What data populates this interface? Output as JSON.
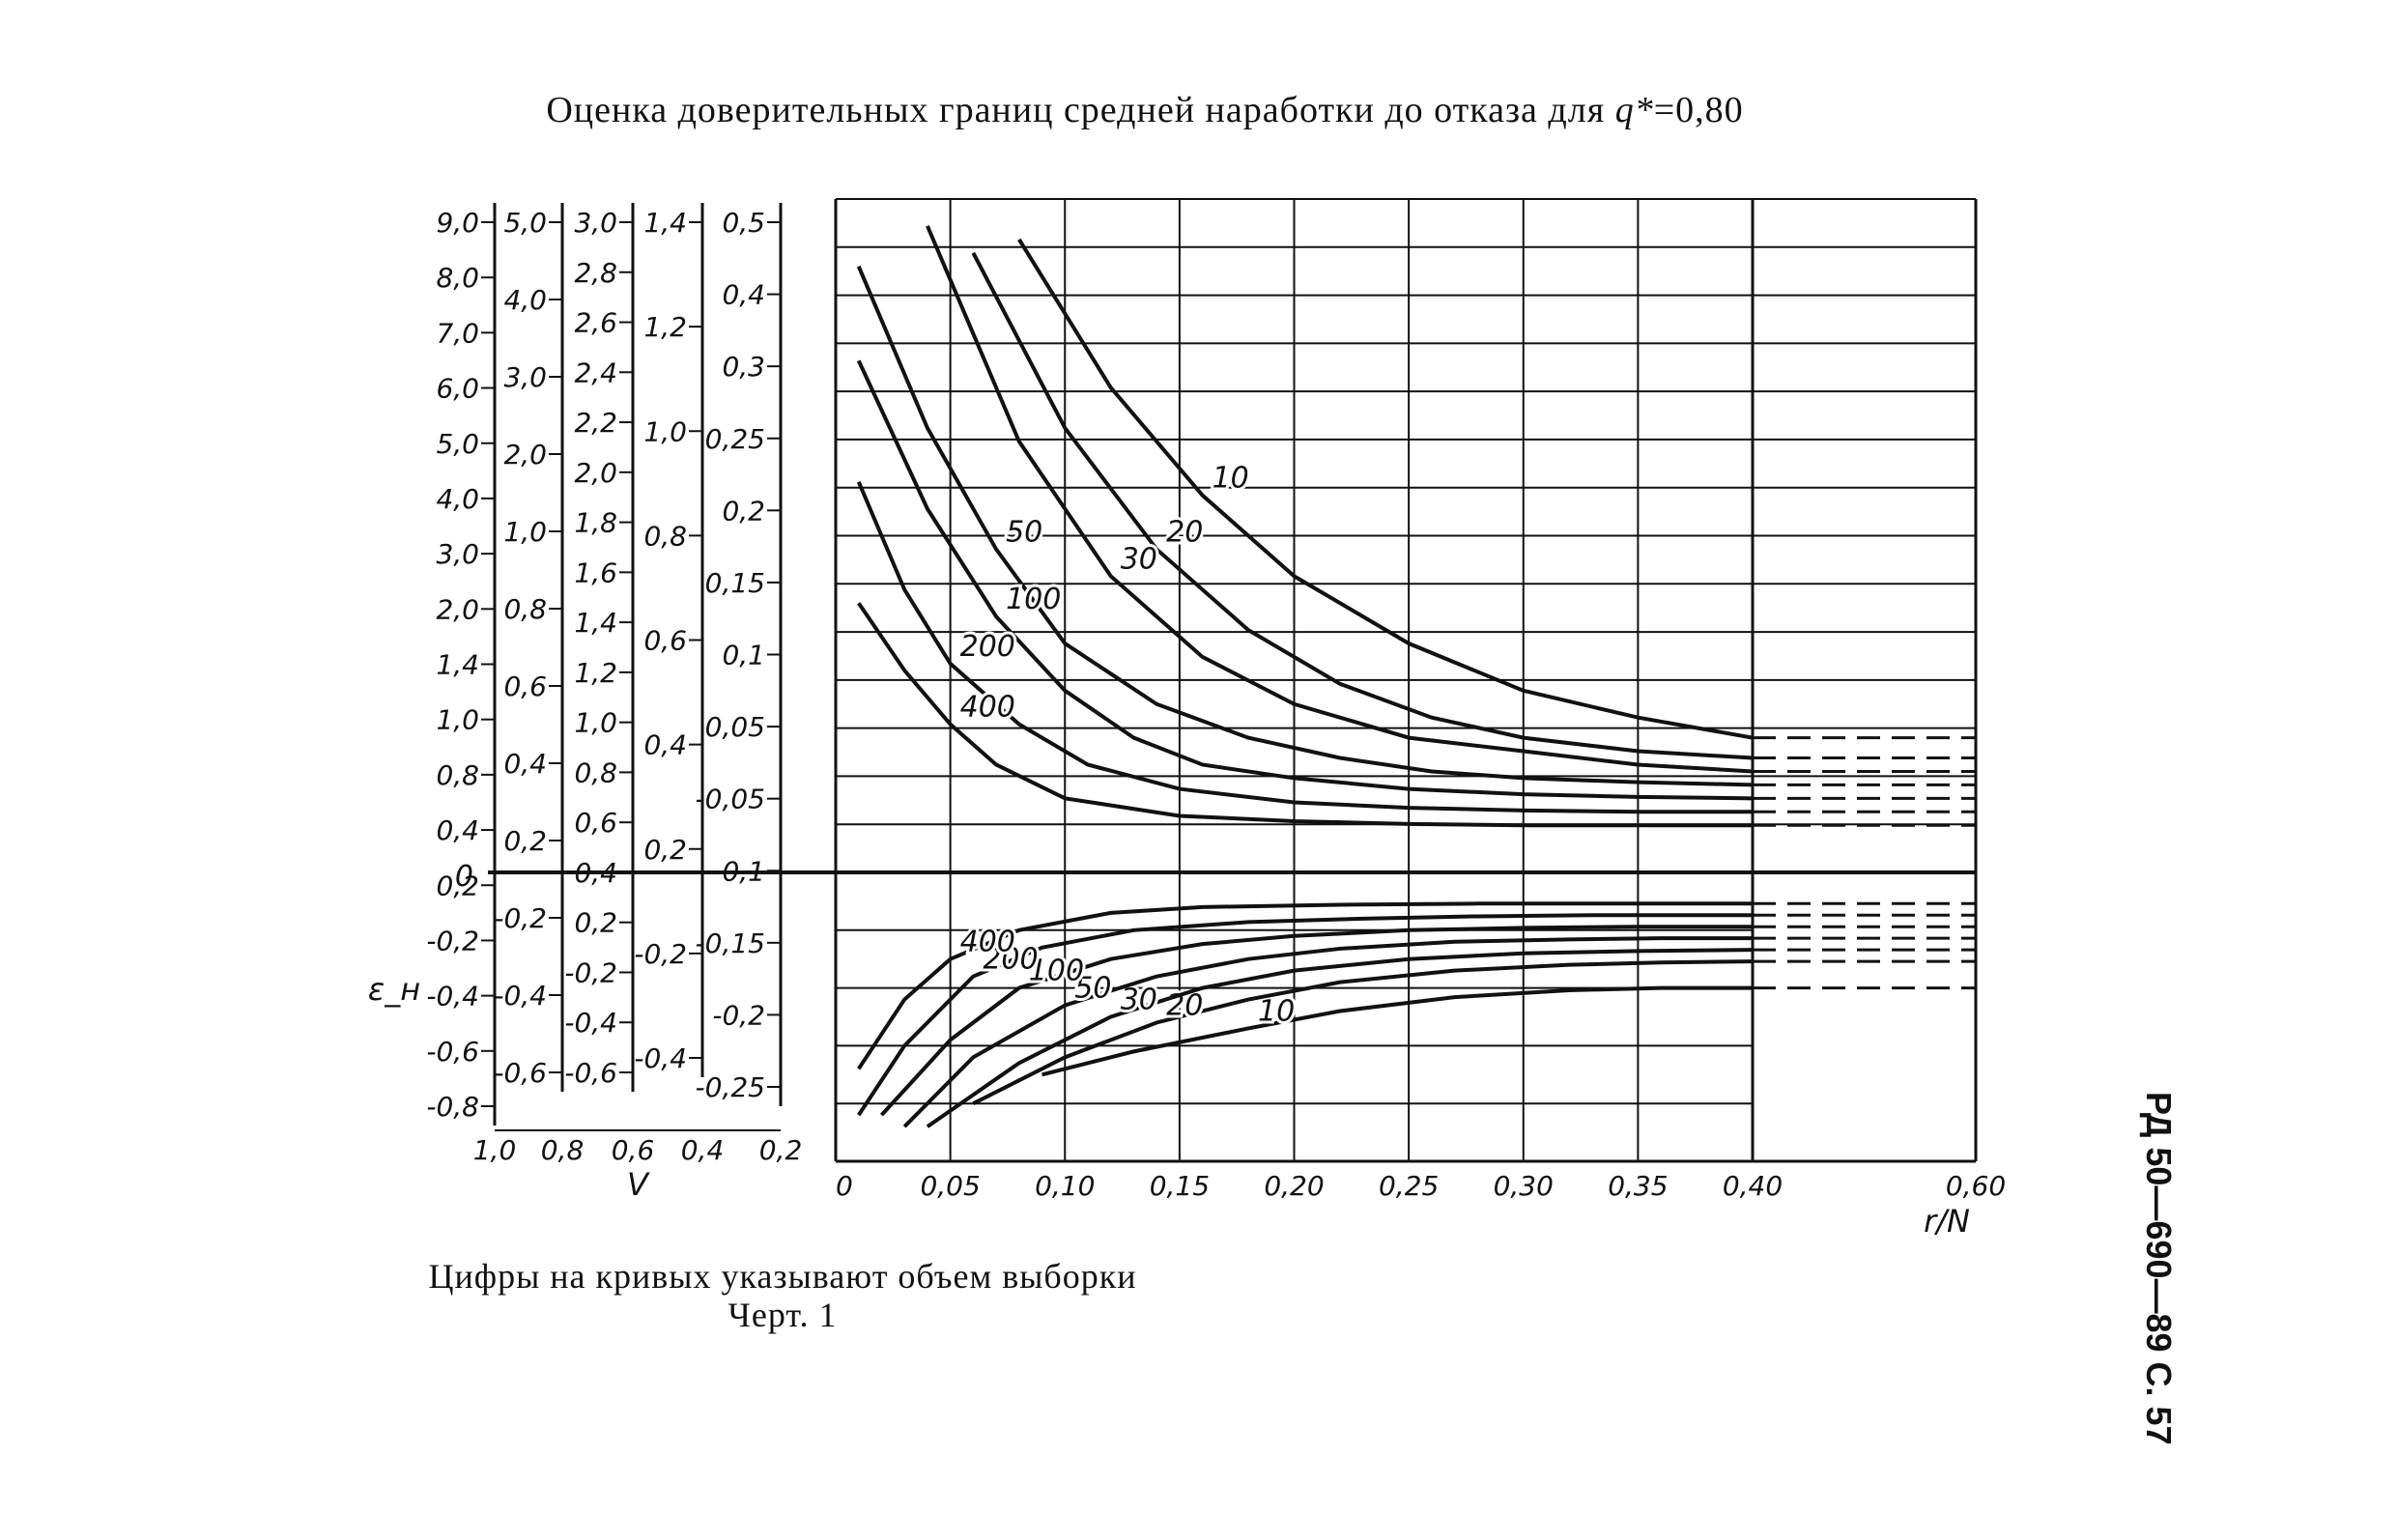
{
  "page": {
    "title_main": "Оценка доверительных границ средней наработки до отказа для ",
    "title_q": "q*",
    "title_value": "=0,80",
    "caption_line1": "Цифры на кривых указывают объем выборки",
    "caption_line2": "Черт. 1",
    "side_label": "РД 50—690—89 С. 57"
  },
  "chart_data": {
    "type": "line",
    "xlabel": "r/N",
    "x_ticks": [
      "0",
      "0,05",
      "0,10",
      "0,15",
      "0,20",
      "0,25",
      "0,30",
      "0,35",
      "0,40",
      "0,60"
    ],
    "xlim": [
      0,
      0.6
    ],
    "ylabel": "ε_н",
    "zero_label": "0",
    "v_label": "V",
    "v_ticks": [
      "1,0",
      "0,8",
      "0,6",
      "0,4",
      "0,2"
    ],
    "side_scales": [
      {
        "name": "scale-1",
        "labels": [
          "9,0",
          "8,0",
          "7,0",
          "6,0",
          "5,0",
          "4,0",
          "3,0",
          "2,0",
          "1,4",
          "1,0",
          "0,8",
          "0,4",
          "0,2",
          "-0,2",
          "-0,4",
          "-0,6",
          "-0,8"
        ]
      },
      {
        "name": "scale-2",
        "labels": [
          "5,0",
          "4,0",
          "3,0",
          "2,0",
          "1,0",
          "0,8",
          "0,6",
          "0,4",
          "0,2",
          "-0,2",
          "-0,4",
          "-0,6"
        ]
      },
      {
        "name": "scale-3",
        "labels": [
          "3,0",
          "2,8",
          "2,6",
          "2,4",
          "2,2",
          "2,0",
          "1,8",
          "1,6",
          "1,4",
          "1,2",
          "1,0",
          "0,8",
          "0,6",
          "0,4",
          "0,2",
          "-0,2",
          "-0,4",
          "-0,6"
        ]
      },
      {
        "name": "scale-4",
        "labels": [
          "1,4",
          "1,2",
          "1,0",
          "0,8",
          "0,6",
          "0,4",
          "0,2",
          "-0,2",
          "-0,4"
        ]
      },
      {
        "name": "scale-5",
        "labels": [
          "0,5",
          "0,4",
          "0,3",
          "0,25",
          "0,2",
          "0,15",
          "0,1",
          "0,05",
          "-0,05",
          "-0,1",
          "-0,15",
          "-0,2",
          "-0,25"
        ]
      }
    ],
    "upper_series": [
      {
        "name": "10",
        "x": [
          0.08,
          0.12,
          0.16,
          0.2,
          0.25,
          0.3,
          0.35,
          0.4,
          0.6
        ],
        "y": [
          0.47,
          0.36,
          0.28,
          0.22,
          0.17,
          0.135,
          0.115,
          0.1,
          0.1
        ]
      },
      {
        "name": "20",
        "x": [
          0.06,
          0.1,
          0.14,
          0.18,
          0.22,
          0.26,
          0.3,
          0.35,
          0.4,
          0.6
        ],
        "y": [
          0.46,
          0.33,
          0.24,
          0.18,
          0.14,
          0.115,
          0.1,
          0.09,
          0.085,
          0.085
        ]
      },
      {
        "name": "30",
        "x": [
          0.04,
          0.08,
          0.12,
          0.16,
          0.2,
          0.25,
          0.3,
          0.35,
          0.4,
          0.6
        ],
        "y": [
          0.48,
          0.32,
          0.22,
          0.16,
          0.125,
          0.1,
          0.09,
          0.08,
          0.075,
          0.075
        ]
      },
      {
        "name": "50",
        "x": [
          0.01,
          0.04,
          0.07,
          0.1,
          0.14,
          0.18,
          0.22,
          0.26,
          0.3,
          0.35,
          0.4,
          0.6
        ],
        "y": [
          0.45,
          0.33,
          0.24,
          0.17,
          0.125,
          0.1,
          0.085,
          0.075,
          0.07,
          0.067,
          0.065,
          0.065
        ]
      },
      {
        "name": "100",
        "x": [
          0.01,
          0.04,
          0.07,
          0.1,
          0.13,
          0.16,
          0.2,
          0.25,
          0.3,
          0.35,
          0.4,
          0.6
        ],
        "y": [
          0.38,
          0.27,
          0.19,
          0.135,
          0.1,
          0.08,
          0.07,
          0.062,
          0.058,
          0.056,
          0.055,
          0.055
        ]
      },
      {
        "name": "200",
        "x": [
          0.01,
          0.03,
          0.05,
          0.08,
          0.11,
          0.15,
          0.2,
          0.25,
          0.3,
          0.35,
          0.4,
          0.6
        ],
        "y": [
          0.29,
          0.21,
          0.155,
          0.11,
          0.08,
          0.062,
          0.052,
          0.048,
          0.046,
          0.045,
          0.045,
          0.045
        ]
      },
      {
        "name": "400",
        "x": [
          0.01,
          0.03,
          0.05,
          0.07,
          0.1,
          0.15,
          0.2,
          0.25,
          0.3,
          0.35,
          0.4,
          0.6
        ],
        "y": [
          0.2,
          0.15,
          0.11,
          0.08,
          0.055,
          0.042,
          0.038,
          0.036,
          0.035,
          0.035,
          0.035,
          0.035
        ]
      }
    ],
    "lower_series": [
      {
        "name": "10",
        "x": [
          0.09,
          0.13,
          0.18,
          0.22,
          0.27,
          0.32,
          0.36,
          0.4,
          0.6
        ],
        "y": [
          -0.175,
          -0.155,
          -0.135,
          -0.12,
          -0.108,
          -0.102,
          -0.1,
          -0.1,
          -0.1
        ]
      },
      {
        "name": "20",
        "x": [
          0.06,
          0.1,
          0.14,
          0.18,
          0.22,
          0.27,
          0.32,
          0.36,
          0.4,
          0.6
        ],
        "y": [
          -0.2,
          -0.16,
          -0.13,
          -0.11,
          -0.095,
          -0.085,
          -0.08,
          -0.078,
          -0.077,
          -0.077
        ]
      },
      {
        "name": "30",
        "x": [
          0.04,
          0.08,
          0.12,
          0.16,
          0.2,
          0.25,
          0.3,
          0.35,
          0.4,
          0.6
        ],
        "y": [
          -0.22,
          -0.165,
          -0.125,
          -0.1,
          -0.085,
          -0.075,
          -0.07,
          -0.068,
          -0.067,
          -0.067
        ]
      },
      {
        "name": "50",
        "x": [
          0.03,
          0.06,
          0.1,
          0.14,
          0.18,
          0.22,
          0.27,
          0.32,
          0.36,
          0.4,
          0.6
        ],
        "y": [
          -0.22,
          -0.16,
          -0.115,
          -0.09,
          -0.075,
          -0.066,
          -0.06,
          -0.058,
          -0.057,
          -0.057,
          -0.057
        ]
      },
      {
        "name": "100",
        "x": [
          0.02,
          0.05,
          0.08,
          0.12,
          0.16,
          0.2,
          0.25,
          0.3,
          0.35,
          0.4,
          0.6
        ],
        "y": [
          -0.21,
          -0.145,
          -0.1,
          -0.075,
          -0.062,
          -0.055,
          -0.05,
          -0.048,
          -0.047,
          -0.047,
          -0.047
        ]
      },
      {
        "name": "200",
        "x": [
          0.01,
          0.03,
          0.06,
          0.09,
          0.13,
          0.18,
          0.23,
          0.28,
          0.33,
          0.4,
          0.6
        ],
        "y": [
          -0.21,
          -0.15,
          -0.09,
          -0.065,
          -0.05,
          -0.043,
          -0.04,
          -0.038,
          -0.037,
          -0.037,
          -0.037
        ]
      },
      {
        "name": "400",
        "x": [
          0.01,
          0.03,
          0.05,
          0.08,
          0.12,
          0.16,
          0.22,
          0.28,
          0.34,
          0.4,
          0.6
        ],
        "y": [
          -0.17,
          -0.11,
          -0.075,
          -0.05,
          -0.035,
          -0.03,
          -0.028,
          -0.027,
          -0.027,
          -0.027,
          -0.027
        ]
      }
    ],
    "bottom_dashed": {
      "x": [
        0.4,
        0.6
      ],
      "y": [
        -0.25,
        -0.25
      ]
    }
  }
}
